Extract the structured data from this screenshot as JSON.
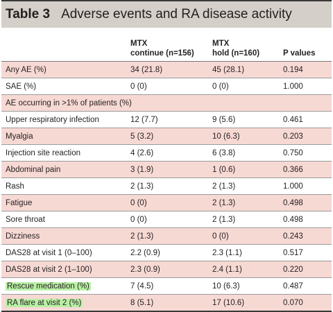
{
  "table": {
    "number": "Table 3",
    "title": "Adverse events and RA disease activity",
    "headers": {
      "c1": "",
      "c2_line1": "MTX",
      "c2_line2": "continue (n=156)",
      "c3_line1": "MTX",
      "c3_line2": "hold (n=160)",
      "c4": "P values"
    },
    "rows": [
      {
        "label": "Any AE (%)",
        "c2": "34 (21.8)",
        "c3": "45 (28.1)",
        "p": "0.194"
      },
      {
        "label": "SAE (%)",
        "c2": "0 (0)",
        "c3": "0 (0)",
        "p": "1.000"
      },
      {
        "label": "AE occurring in >1% of patients (%)",
        "c2": "",
        "c3": "",
        "p": ""
      },
      {
        "label": "Upper respiratory infection",
        "c2": "12 (7.7)",
        "c3": "9 (5.6)",
        "p": "0.461"
      },
      {
        "label": "Myalgia",
        "c2": "5 (3.2)",
        "c3": "10 (6.3)",
        "p": "0.203"
      },
      {
        "label": "Injection site reaction",
        "c2": "4 (2.6)",
        "c3": "6 (3.8)",
        "p": "0.750"
      },
      {
        "label": "Abdominal pain",
        "c2": "3 (1.9)",
        "c3": "1 (0.6)",
        "p": "0.366"
      },
      {
        "label": "Rash",
        "c2": "2 (1.3)",
        "c3": "2 (1.3)",
        "p": "1.000"
      },
      {
        "label": "Fatigue",
        "c2": "0 (0)",
        "c3": "2 (1.3)",
        "p": "0.498"
      },
      {
        "label": "Sore throat",
        "c2": "0 (0)",
        "c3": "2 (1.3)",
        "p": "0.498"
      },
      {
        "label": "Dizziness",
        "c2": "2 (1.3)",
        "c3": "0 (0)",
        "p": "0.243"
      },
      {
        "label": "DAS28 at visit 1 (0–100)",
        "c2": "2.2 (0.9)",
        "c3": "2.3 (1.1)",
        "p": "0.517"
      },
      {
        "label": "DAS28 at visit 2 (1–100)",
        "c2": "2.3 (0.9)",
        "c3": "2.4 (1.1)",
        "p": "0.220"
      },
      {
        "label": "Rescue medication (%)",
        "c2": "7 (4.5)",
        "c3": "10 (6.3)",
        "p": "0.487"
      },
      {
        "label": "RA flare at visit 2 (%)",
        "c2": "8 (5.1)",
        "c3": "17 (10.6)",
        "p": "0.070"
      }
    ]
  },
  "colors": {
    "title_bg": "#d4cfc8",
    "row_pink": "#f7d9d4",
    "highlight_green": "#b9f0a5"
  }
}
